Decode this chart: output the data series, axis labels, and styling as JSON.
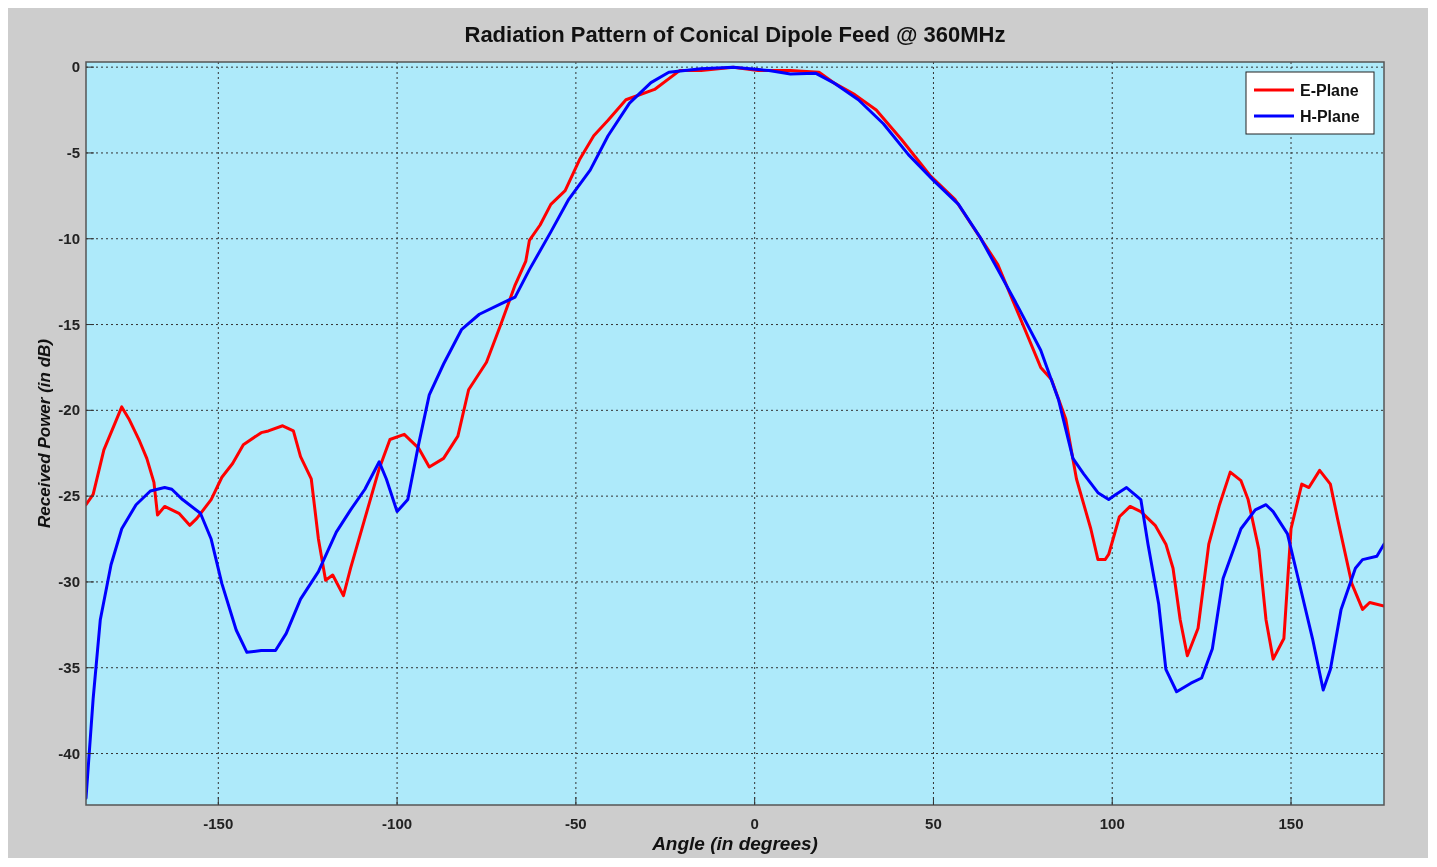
{
  "chart_data": {
    "type": "line",
    "title": "Radiation Pattern of Conical Dipole Feed @ 360MHz",
    "xlabel": "Angle (in degrees)",
    "ylabel": "Received Power (in dB)",
    "xlim": [
      -187,
      176
    ],
    "ylim": [
      -43,
      0.3
    ],
    "xticks": [
      -150,
      -100,
      -50,
      0,
      50,
      100,
      150
    ],
    "yticks": [
      0,
      -5,
      -10,
      -15,
      -20,
      -25,
      -30,
      -35,
      -40
    ],
    "grid": true,
    "legend": "top right",
    "line_style": "solid",
    "series": [
      {
        "name": "E-Plane",
        "color": "#ff0000",
        "x": [
          -187,
          -185,
          -182,
          -179,
          -177,
          -175,
          -172,
          -170,
          -168,
          -167,
          -165,
          -161,
          -158,
          -156,
          -152,
          -149,
          -146,
          -143,
          -138,
          -136,
          -132,
          -129,
          -127,
          -124,
          -122,
          -120,
          -118,
          -115,
          -113,
          -109,
          -105,
          -102,
          -98,
          -94,
          -91,
          -87,
          -83,
          -80,
          -75,
          -71,
          -67,
          -64,
          -63,
          -60,
          -57,
          -53,
          -49,
          -45,
          -41,
          -36,
          -28,
          -21,
          -15,
          -6,
          1,
          10,
          18,
          22,
          28,
          34,
          41,
          49,
          56,
          62,
          68,
          72,
          75,
          80,
          83,
          87,
          90,
          94,
          96,
          98,
          99,
          102,
          105,
          108,
          112,
          115,
          117,
          119,
          121,
          124,
          127,
          130,
          133,
          136,
          138,
          141,
          143,
          145,
          148,
          150,
          153,
          155,
          158,
          161,
          163,
          167,
          170,
          172,
          176
        ],
        "values": [
          -25.5,
          -24.9,
          -22.3,
          -20.8,
          -19.8,
          -20.5,
          -21.8,
          -22.8,
          -24.2,
          -26.1,
          -25.6,
          -26.0,
          -26.7,
          -26.3,
          -25.2,
          -23.9,
          -23.1,
          -22.0,
          -21.3,
          -21.2,
          -20.9,
          -21.2,
          -22.7,
          -24.0,
          -27.5,
          -29.9,
          -29.6,
          -30.8,
          -29.2,
          -26.3,
          -23.4,
          -21.7,
          -21.4,
          -22.2,
          -23.3,
          -22.8,
          -21.5,
          -18.8,
          -17.2,
          -15.0,
          -12.7,
          -11.3,
          -10.1,
          -9.2,
          -8.0,
          -7.2,
          -5.4,
          -4.0,
          -3.1,
          -1.9,
          -1.3,
          -0.2,
          -0.2,
          0,
          -0.2,
          -0.2,
          -0.3,
          -0.9,
          -1.6,
          -2.5,
          -4.2,
          -6.3,
          -7.7,
          -9.6,
          -11.5,
          -13.5,
          -15.0,
          -17.5,
          -18.2,
          -20.5,
          -24.0,
          -26.9,
          -28.7,
          -28.7,
          -28.4,
          -26.2,
          -25.6,
          -25.9,
          -26.7,
          -27.8,
          -29.2,
          -32.2,
          -34.3,
          -32.7,
          -27.8,
          -25.5,
          -23.6,
          -24.1,
          -25.2,
          -28.1,
          -32.2,
          -34.5,
          -33.3,
          -26.9,
          -24.3,
          -24.5,
          -23.5,
          -24.3,
          -26.3,
          -30.1,
          -31.6,
          -31.2,
          -31.4
        ]
      },
      {
        "name": "H-Plane",
        "color": "#0000ff",
        "x": [
          -187,
          -185,
          -183,
          -180,
          -177,
          -173,
          -169,
          -165,
          -163,
          -160,
          -155,
          -152,
          -149,
          -145,
          -142,
          -138,
          -134,
          -131,
          -127,
          -122,
          -117,
          -113,
          -109,
          -105,
          -103,
          -100,
          -97,
          -94,
          -91,
          -87,
          -82,
          -77,
          -71,
          -67,
          -63,
          -57,
          -52,
          -46,
          -41,
          -35,
          -29,
          -24,
          -15,
          -6,
          4,
          10,
          17,
          22,
          29,
          36,
          43,
          50,
          57,
          63,
          68,
          74,
          80,
          85,
          89,
          92,
          96,
          99,
          101,
          104,
          108,
          110,
          113,
          115,
          118,
          122,
          125,
          128,
          131,
          136,
          140,
          143,
          145,
          149,
          152,
          156,
          159,
          161,
          164,
          168,
          170,
          174,
          176
        ],
        "values": [
          -42.6,
          -36.8,
          -32.2,
          -29.0,
          -26.9,
          -25.5,
          -24.7,
          -24.5,
          -24.6,
          -25.2,
          -26.0,
          -27.5,
          -30.1,
          -32.8,
          -34.1,
          -34.0,
          -34.0,
          -33.0,
          -31.0,
          -29.4,
          -27.1,
          -25.8,
          -24.6,
          -23.0,
          -24.0,
          -25.9,
          -25.2,
          -22.0,
          -19.1,
          -17.3,
          -15.3,
          -14.4,
          -13.8,
          -13.4,
          -11.8,
          -9.6,
          -7.7,
          -6.0,
          -4.0,
          -2.1,
          -0.9,
          -0.3,
          -0.1,
          0,
          -0.2,
          -0.4,
          -0.35,
          -0.9,
          -1.9,
          -3.3,
          -5.1,
          -6.6,
          -8.0,
          -9.9,
          -11.8,
          -14.1,
          -16.5,
          -19.4,
          -22.8,
          -23.7,
          -24.8,
          -25.2,
          -24.9,
          -24.5,
          -25.2,
          -27.8,
          -31.3,
          -35.1,
          -36.4,
          -35.9,
          -35.6,
          -33.9,
          -29.8,
          -26.9,
          -25.8,
          -25.5,
          -25.9,
          -27.2,
          -29.8,
          -33.3,
          -36.3,
          -35.1,
          -31.6,
          -29.2,
          -28.7,
          -28.5,
          -27.8
        ]
      }
    ]
  }
}
